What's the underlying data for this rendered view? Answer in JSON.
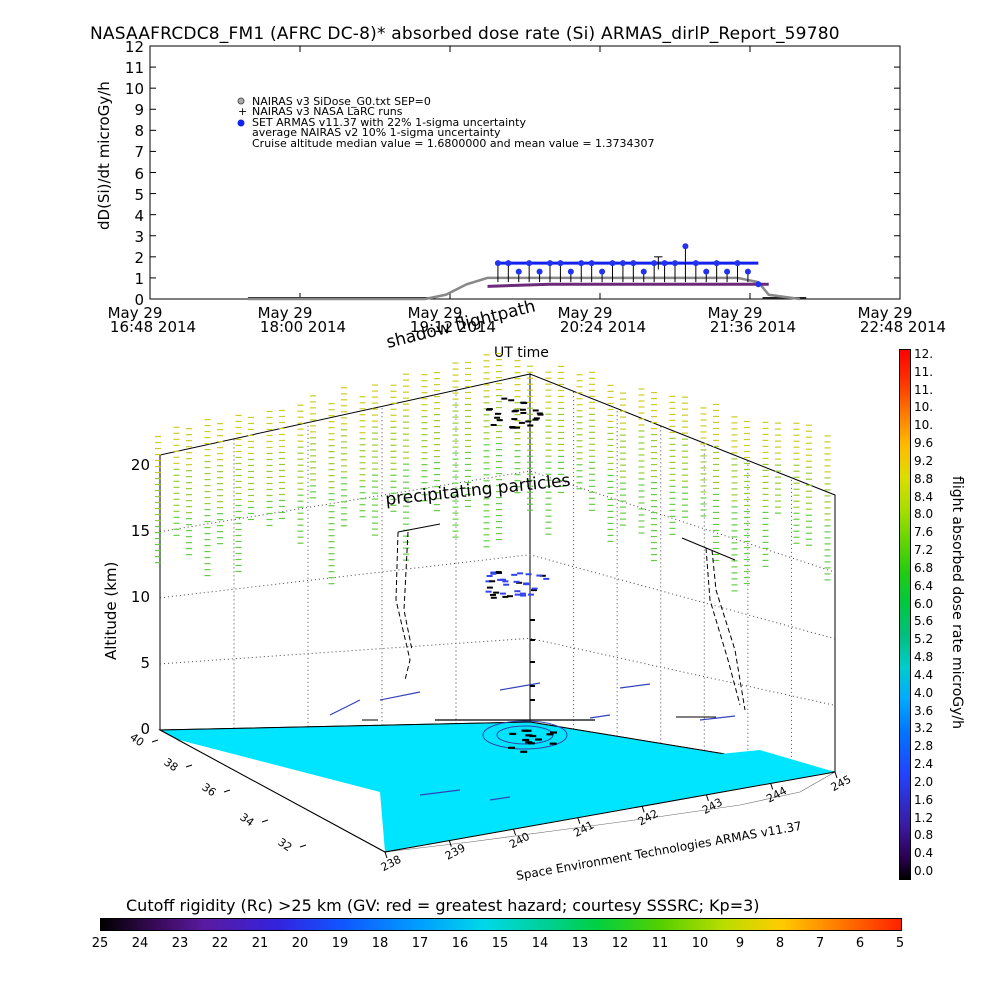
{
  "title": "NASAAFRCDC8_FM1 (AFRC DC-8)* absorbed dose rate (Si) ARMAS_dirlP_Report_59780",
  "top_chart": {
    "ylabel": "dD(Si)/dt microGy/h",
    "xlabel": "UT time",
    "yticks": [
      "0",
      "1",
      "2",
      "3",
      "4",
      "5",
      "6",
      "7",
      "8",
      "9",
      "10",
      "11",
      "12"
    ],
    "xticks": [
      {
        "day": "May 29",
        "time": "16:48 2014"
      },
      {
        "day": "May 29",
        "time": "18:00 2014"
      },
      {
        "day": "May 29",
        "time": "19:12 2014"
      },
      {
        "day": "May 29",
        "time": "20:24 2014"
      },
      {
        "day": "May 29",
        "time": "21:36 2014"
      },
      {
        "day": "May 29",
        "time": "22:48 2014"
      }
    ],
    "legend": [
      "NAIRAS v3 SiDose_G0.txt SEP=0",
      "NAIRAS v3 NASA LaRC runs",
      "SET ARMAS v11.37 with 22% 1-sigma uncertainty",
      "average NAIRAS v2 10% 1-sigma uncertainty",
      "Cruise altitude median value = 1.6800000 and mean value = 1.3734307"
    ],
    "colors": {
      "armas": "#2222ee",
      "nairas_v3": "#7a3a8a",
      "grey": "#777777"
    }
  },
  "chart_data": [
    {
      "type": "line",
      "title": "NASAAFRCDC8_FM1 (AFRC DC-8)* absorbed dose rate (Si) ARMAS_dirlP_Report_59780",
      "xlabel": "UT time",
      "ylabel": "dD(Si)/dt microGy/h",
      "ylim": [
        0,
        12
      ],
      "xlim": [
        "16:48",
        "22:48"
      ],
      "series": [
        {
          "name": "SET ARMAS v11.37 with 22% 1-sigma uncertainty",
          "x": [
            "19:35",
            "19:40",
            "19:45",
            "19:50",
            "19:55",
            "20:00",
            "20:05",
            "20:10",
            "20:15",
            "20:20",
            "20:25",
            "20:30",
            "20:35",
            "20:40",
            "20:45",
            "20:50",
            "20:55",
            "21:00",
            "21:05",
            "21:10",
            "21:15",
            "21:20",
            "21:25",
            "21:30",
            "21:35",
            "21:40"
          ],
          "y": [
            1.7,
            1.7,
            1.3,
            1.7,
            1.3,
            1.7,
            1.7,
            1.3,
            1.7,
            1.7,
            1.3,
            1.7,
            1.7,
            1.7,
            1.3,
            1.7,
            1.7,
            1.7,
            2.5,
            1.7,
            1.3,
            1.7,
            1.3,
            1.7,
            1.3,
            0.7
          ]
        },
        {
          "name": "NAIRAS v3 SiDose_G0.txt SEP=0",
          "x": [
            "17:35",
            "18:30",
            "19:00",
            "19:10",
            "19:20",
            "19:30",
            "20:00",
            "20:30",
            "21:00",
            "21:30",
            "21:40",
            "21:45",
            "22:00"
          ],
          "y": [
            0,
            0,
            0,
            0.2,
            0.7,
            1.0,
            1.0,
            1.0,
            1.0,
            1.0,
            0.8,
            0.2,
            0
          ]
        },
        {
          "name": "NAIRAS v3 NASA LaRC runs",
          "x": [
            "19:30",
            "20:00",
            "20:30",
            "21:00",
            "21:30",
            "21:45"
          ],
          "y": [
            0.6,
            0.7,
            0.7,
            0.7,
            0.7,
            0.7
          ]
        }
      ]
    },
    {
      "type": "heatmap",
      "title": "Cutoff rigidity (Rc) >25 km (GV: red = greatest hazard; courtesy SSSRC; Kp=3)",
      "ylabel": "Altitude (km)",
      "xlabel": "Space Environment Technologies ARMAS v11.37",
      "zlim": [
        0,
        20
      ],
      "lon_ticks": [
        "238",
        "239",
        "240",
        "241",
        "242",
        "243",
        "244",
        "245"
      ],
      "lat_ticks": [
        "32",
        "34",
        "36",
        "38",
        "40"
      ],
      "annotations": [
        "shadow flightpath",
        "precipitating particles"
      ],
      "colorbar_flight": {
        "label": "flight absorbed dose rate microGy/h",
        "range": [
          0.0,
          12.0
        ]
      },
      "colorbar_rigidity": {
        "range": [
          25,
          5
        ]
      }
    }
  ],
  "scene": {
    "ylabel": "Altitude (km)",
    "zticks": [
      "0",
      "5",
      "10",
      "15",
      "20"
    ],
    "lat_ticks": [
      "40",
      "38",
      "36",
      "34",
      "32"
    ],
    "lon_ticks": [
      "238",
      "239",
      "240",
      "241",
      "242",
      "243",
      "244",
      "245"
    ],
    "credit": "Space Environment Technologies ARMAS v11.37",
    "annot_shadow": "shadow flightpath",
    "annot_precip": "precipitating particles"
  },
  "dose_colorbar": {
    "label": "flight absorbed dose rate microGy/h",
    "ticks": [
      "0.0",
      "0.4",
      "0.8",
      "1.2",
      "1.6",
      "2.0",
      "2.4",
      "2.8",
      "3.2",
      "3.6",
      "4.0",
      "4.4",
      "4.8",
      "5.2",
      "5.6",
      "6.0",
      "6.4",
      "6.8",
      "7.2",
      "7.6",
      "8.0",
      "8.4",
      "8.8",
      "9.2",
      "9.6",
      "10.",
      "10.",
      "11.",
      "11.",
      "12."
    ]
  },
  "rigidity_bar": {
    "title": "Cutoff rigidity (Rc) >25 km (GV: red = greatest hazard; courtesy SSSRC; Kp=3)",
    "ticks": [
      "25",
      "24",
      "23",
      "22",
      "21",
      "20",
      "19",
      "18",
      "17",
      "16",
      "15",
      "14",
      "13",
      "12",
      "11",
      "10",
      "9",
      "8",
      "7",
      "6",
      "5"
    ]
  }
}
